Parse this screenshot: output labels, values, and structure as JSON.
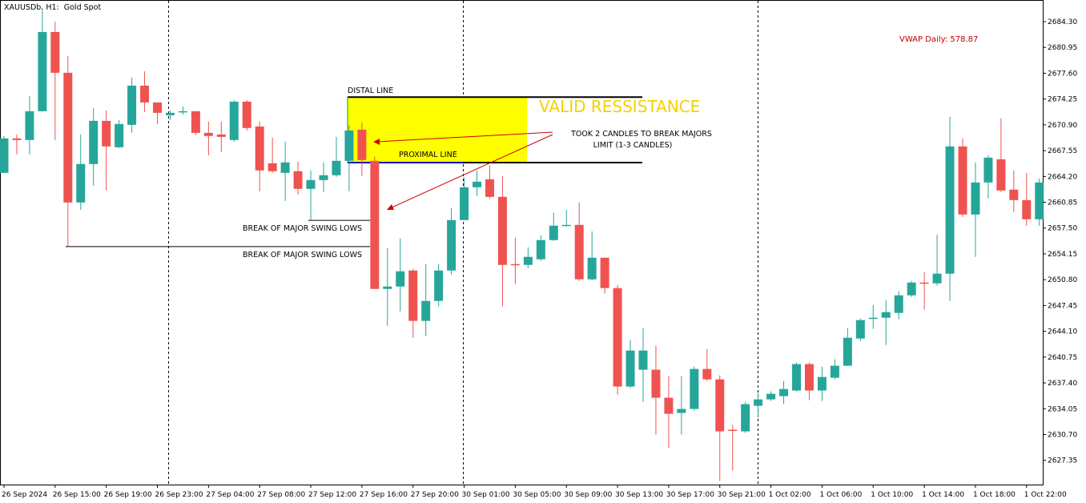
{
  "chart_data": {
    "type": "candlestick",
    "title": "XAUUSDb, H1:  Gold Spot",
    "indicator": "VWAP Daily: 578.87",
    "annotations": {
      "distal": "DISTAL LINE",
      "proximal": "PROXIMAL LINE",
      "zone": "VALID RESSISTANCE",
      "note": [
        "TOOK 2 CANDLES TO BREAK MAJORS",
        "LIMIT (1-3 CANDLES)"
      ],
      "swing_lows": [
        "BREAK OF MAJOR SWING LOWS",
        "BREAK OF MAJOR SWING LOWS"
      ]
    },
    "levels": {
      "distal": 2674.5,
      "proximal": 2666.0,
      "swing_lows": [
        2658.5,
        2655.1
      ]
    },
    "up_color": "#26a69a",
    "down_color": "#ef5350",
    "categories": [
      "26 Sep 2024",
      null,
      null,
      null,
      "26 Sep 15:00",
      null,
      null,
      null,
      "26 Sep 19:00",
      null,
      null,
      null,
      "26 Sep 23:00",
      null,
      null,
      null,
      "27 Sep 04:00",
      null,
      null,
      null,
      "27 Sep 08:00",
      null,
      null,
      null,
      "27 Sep 12:00",
      null,
      null,
      null,
      "27 Sep 16:00",
      null,
      null,
      null,
      "27 Sep 20:00",
      null,
      null,
      null,
      "30 Sep 01:00",
      null,
      null,
      null,
      "30 Sep 05:00",
      null,
      null,
      null,
      "30 Sep 09:00",
      null,
      null,
      null,
      "30 Sep 13:00",
      null,
      null,
      null,
      "30 Sep 17:00",
      null,
      null,
      null,
      "30 Sep 21:00",
      null,
      null,
      null,
      "1 Oct 02:00",
      null,
      null,
      null,
      "1 Oct 06:00",
      null,
      null,
      null,
      "1 Oct 10:00",
      null,
      null,
      null,
      "1 Oct 14:00",
      null,
      null,
      null,
      "1 Oct 18:00",
      null,
      null,
      null,
      "1 Oct 22:00",
      null
    ],
    "open": [
      2664.67,
      2669.14,
      2668.93,
      2672.67,
      2682.95,
      2677.66,
      2660.82,
      2665.81,
      2671.42,
      2667.99,
      2670.9,
      2675.99,
      2673.81,
      2672.15,
      2672.56,
      2672.67,
      2669.86,
      2669.65,
      2668.93,
      2673.91,
      2670.69,
      2665.91,
      2664.67,
      2664.88,
      2662.59,
      2663.73,
      2664.36,
      2666.23,
      2670.28,
      2666.23,
      2649.6,
      2649.91,
      2651.99,
      2645.45,
      2648.04,
      2651.99,
      2658.54,
      2662.8,
      2663.84,
      2661.55,
      2652.82,
      2652.72,
      2653.45,
      2655.94,
      2657.81,
      2657.91,
      2650.85,
      2653.65,
      2649.71,
      2636.93,
      2639.11,
      2639.11,
      2635.47,
      2633.5,
      2634.02,
      2639.21,
      2637.86,
      2631.32,
      2631.11,
      2634.43,
      2635.26,
      2635.68,
      2636.41,
      2639.84,
      2636.41,
      2638.07,
      2639.63,
      2643.16,
      2645.76,
      2645.86,
      2646.49,
      2648.77,
      2650.43,
      2650.33,
      2651.58,
      2668.1,
      2659.26,
      2663.42,
      2666.43,
      2662.49,
      2661.13,
      2658.64
    ],
    "high": [
      2669.45,
      2669.65,
      2674.64,
      2685.66,
      2684.3,
      2679.84,
      2669.65,
      2673.08,
      2672.77,
      2671.52,
      2677.03,
      2677.86,
      2673.81,
      2672.77,
      2673.29,
      2672.67,
      2671.32,
      2671.32,
      2674.12,
      2674.12,
      2671.32,
      2669.24,
      2668.72,
      2666.12,
      2664.98,
      2666.02,
      2669.34,
      2670.9,
      2671.21,
      2666.75,
      2654.9,
      2656.15,
      2652.2,
      2652.82,
      2652.82,
      2660.1,
      2664.04,
      2664.98,
      2665.6,
      2664.25,
      2656.25,
      2655.0,
      2656.56,
      2659.47,
      2659.89,
      2660.82,
      2657.08,
      2653.65,
      2650.12,
      2642.95,
      2644.51,
      2642.23,
      2638.28,
      2638.28,
      2639.52,
      2641.81,
      2638.38,
      2631.94,
      2634.95,
      2636.1,
      2636.3,
      2637.65,
      2640.04,
      2640.04,
      2639.52,
      2640.46,
      2644.51,
      2645.76,
      2647.52,
      2648.15,
      2649.29,
      2650.64,
      2651.78,
      2656.67,
      2671.94,
      2669.14,
      2666.02,
      2666.95,
      2671.73,
      2664.98,
      2664.67,
      2663.94
    ],
    "low": [
      2664.67,
      2667.06,
      2667.06,
      2672.67,
      2668.93,
      2655.11,
      2659.89,
      2663.01,
      2662.38,
      2667.89,
      2669.86,
      2672.56,
      2671.01,
      2671.52,
      2672.25,
      2669.55,
      2666.95,
      2667.37,
      2668.72,
      2670.17,
      2662.28,
      2664.67,
      2661.03,
      2661.86,
      2658.54,
      2662.17,
      2664.15,
      2662.28,
      2664.25,
      2649.6,
      2644.82,
      2646.69,
      2643.26,
      2643.47,
      2647.32,
      2651.47,
      2658.54,
      2661.65,
      2661.34,
      2647.32,
      2650.23,
      2652.3,
      2653.24,
      2655.84,
      2657.71,
      2650.64,
      2650.74,
      2648.98,
      2635.89,
      2636.72,
      2634.95,
      2630.69,
      2628.93,
      2630.69,
      2633.81,
      2637.65,
      2624.67,
      2626.02,
      2630.9,
      2632.87,
      2635.06,
      2634.64,
      2636.3,
      2635.16,
      2635.06,
      2637.86,
      2639.63,
      2642.85,
      2644.41,
      2642.33,
      2645.65,
      2648.56,
      2646.9,
      2650.02,
      2648.04,
      2658.95,
      2653.76,
      2661.34,
      2662.17,
      2659.58,
      2657.81,
      2657.81
    ],
    "close": [
      2669.14,
      2668.93,
      2672.67,
      2682.95,
      2677.66,
      2660.82,
      2665.81,
      2671.42,
      2668.1,
      2671.01,
      2675.99,
      2673.81,
      2672.46,
      2672.46,
      2672.67,
      2669.86,
      2669.45,
      2669.34,
      2673.91,
      2670.49,
      2664.98,
      2664.88,
      2666.02,
      2662.59,
      2663.73,
      2664.36,
      2666.23,
      2670.17,
      2666.33,
      2649.6,
      2649.91,
      2651.89,
      2645.45,
      2648.04,
      2651.99,
      2658.54,
      2662.8,
      2663.52,
      2661.55,
      2652.72,
      2652.72,
      2653.76,
      2655.94,
      2657.81,
      2657.91,
      2650.85,
      2653.65,
      2649.71,
      2636.93,
      2641.6,
      2641.6,
      2635.47,
      2633.39,
      2634.02,
      2639.21,
      2637.86,
      2631.11,
      2631.2,
      2634.64,
      2635.26,
      2635.99,
      2636.61,
      2639.84,
      2636.41,
      2638.17,
      2639.63,
      2643.26,
      2645.55,
      2645.86,
      2646.59,
      2648.77,
      2650.43,
      2650.33,
      2651.58,
      2668.1,
      2659.26,
      2663.42,
      2666.64,
      2662.38,
      2661.13,
      2658.64,
      2663.42
    ],
    "ylim": [
      2624.2,
      2686.9
    ],
    "yticks": [
      {
        "value": 2684.3,
        "label": "2684.30"
      },
      2680.95,
      {
        "value": 2677.6,
        "label": "2677.60"
      },
      2674.25,
      {
        "value": 2670.9,
        "label": "2670.90"
      },
      2667.55,
      {
        "value": 2664.2,
        "label": "2664.20"
      },
      2660.85,
      {
        "value": 2657.5,
        "label": "2657.50"
      },
      2654.15,
      {
        "value": 2650.8,
        "label": "2650.80"
      },
      2647.45,
      {
        "value": 2644.1,
        "label": "2644.10"
      },
      2640.75,
      {
        "value": 2637.4,
        "label": "2637.40"
      },
      2634.05,
      {
        "value": 2630.7,
        "label": "2630.70"
      },
      2627.35
    ]
  }
}
